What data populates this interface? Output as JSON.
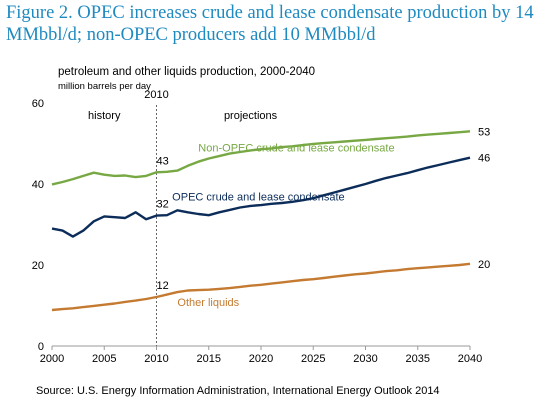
{
  "figure": {
    "title": "Figure 2. OPEC increases crude and lease condensate production by 14 MMbbl/d; non-OPEC producers add 10 MMbbl/d",
    "source": "Source: U.S. Energy Information Administration, International Energy Outlook 2014"
  },
  "chart_data": {
    "type": "line",
    "title": "petroleum  and other liquids production, 2000-2040",
    "ylabel": "million barrels per day",
    "xlim": [
      2000,
      2040
    ],
    "ylim": [
      0,
      60
    ],
    "x_ticks": [
      2000,
      2005,
      2010,
      2015,
      2020,
      2025,
      2030,
      2035,
      2040
    ],
    "y_ticks": [
      0,
      20,
      40,
      60
    ],
    "grid": false,
    "divider": {
      "x": 2010,
      "label": "2010"
    },
    "region_labels": {
      "history": "history",
      "projections": "projections"
    },
    "x": [
      2000,
      2001,
      2002,
      2003,
      2004,
      2005,
      2006,
      2007,
      2008,
      2009,
      2010,
      2011,
      2012,
      2013,
      2014,
      2015,
      2016,
      2017,
      2018,
      2019,
      2020,
      2021,
      2022,
      2023,
      2024,
      2025,
      2026,
      2027,
      2028,
      2029,
      2030,
      2031,
      2032,
      2033,
      2034,
      2035,
      2036,
      2037,
      2038,
      2039,
      2040
    ],
    "series": [
      {
        "name": "Non-OPEC crude and lease condensate",
        "color": "#77a843",
        "values": [
          39.9,
          40.5,
          41.2,
          42.0,
          42.8,
          42.3,
          42.0,
          42.1,
          41.7,
          42.0,
          42.9,
          43.0,
          43.3,
          44.5,
          45.5,
          46.3,
          46.9,
          47.5,
          47.9,
          48.3,
          48.6,
          48.8,
          49.1,
          49.3,
          49.6,
          49.9,
          50.1,
          50.3,
          50.5,
          50.7,
          50.9,
          51.1,
          51.3,
          51.5,
          51.7,
          52.0,
          52.2,
          52.4,
          52.6,
          52.8,
          53.0
        ],
        "label_value": "43",
        "label_at": 2010,
        "end_label": "53"
      },
      {
        "name": "OPEC crude and lease condensate",
        "color": "#0c2d5a",
        "values": [
          29.0,
          28.5,
          27.0,
          28.5,
          30.8,
          32.0,
          31.8,
          31.6,
          33.0,
          31.3,
          32.2,
          32.3,
          33.5,
          33.0,
          32.6,
          32.3,
          33.0,
          33.6,
          34.2,
          34.6,
          34.8,
          35.1,
          35.3,
          35.6,
          36.0,
          36.5,
          37.2,
          37.9,
          38.6,
          39.3,
          40.0,
          40.8,
          41.5,
          42.1,
          42.7,
          43.4,
          44.1,
          44.7,
          45.3,
          45.9,
          46.5
        ],
        "label_value": "32",
        "label_at": 2010,
        "end_label": "46"
      },
      {
        "name": "Other liquids",
        "color": "#c47a30",
        "values": [
          8.9,
          9.1,
          9.3,
          9.6,
          9.9,
          10.2,
          10.5,
          10.9,
          11.2,
          11.6,
          12.1,
          12.7,
          13.3,
          13.7,
          13.8,
          13.9,
          14.1,
          14.3,
          14.6,
          14.9,
          15.1,
          15.4,
          15.7,
          16.0,
          16.3,
          16.5,
          16.8,
          17.1,
          17.4,
          17.7,
          17.9,
          18.2,
          18.5,
          18.7,
          19.0,
          19.2,
          19.4,
          19.6,
          19.8,
          20.0,
          20.3
        ],
        "label_value": "12",
        "label_at": 2010,
        "end_label": "20"
      }
    ]
  }
}
